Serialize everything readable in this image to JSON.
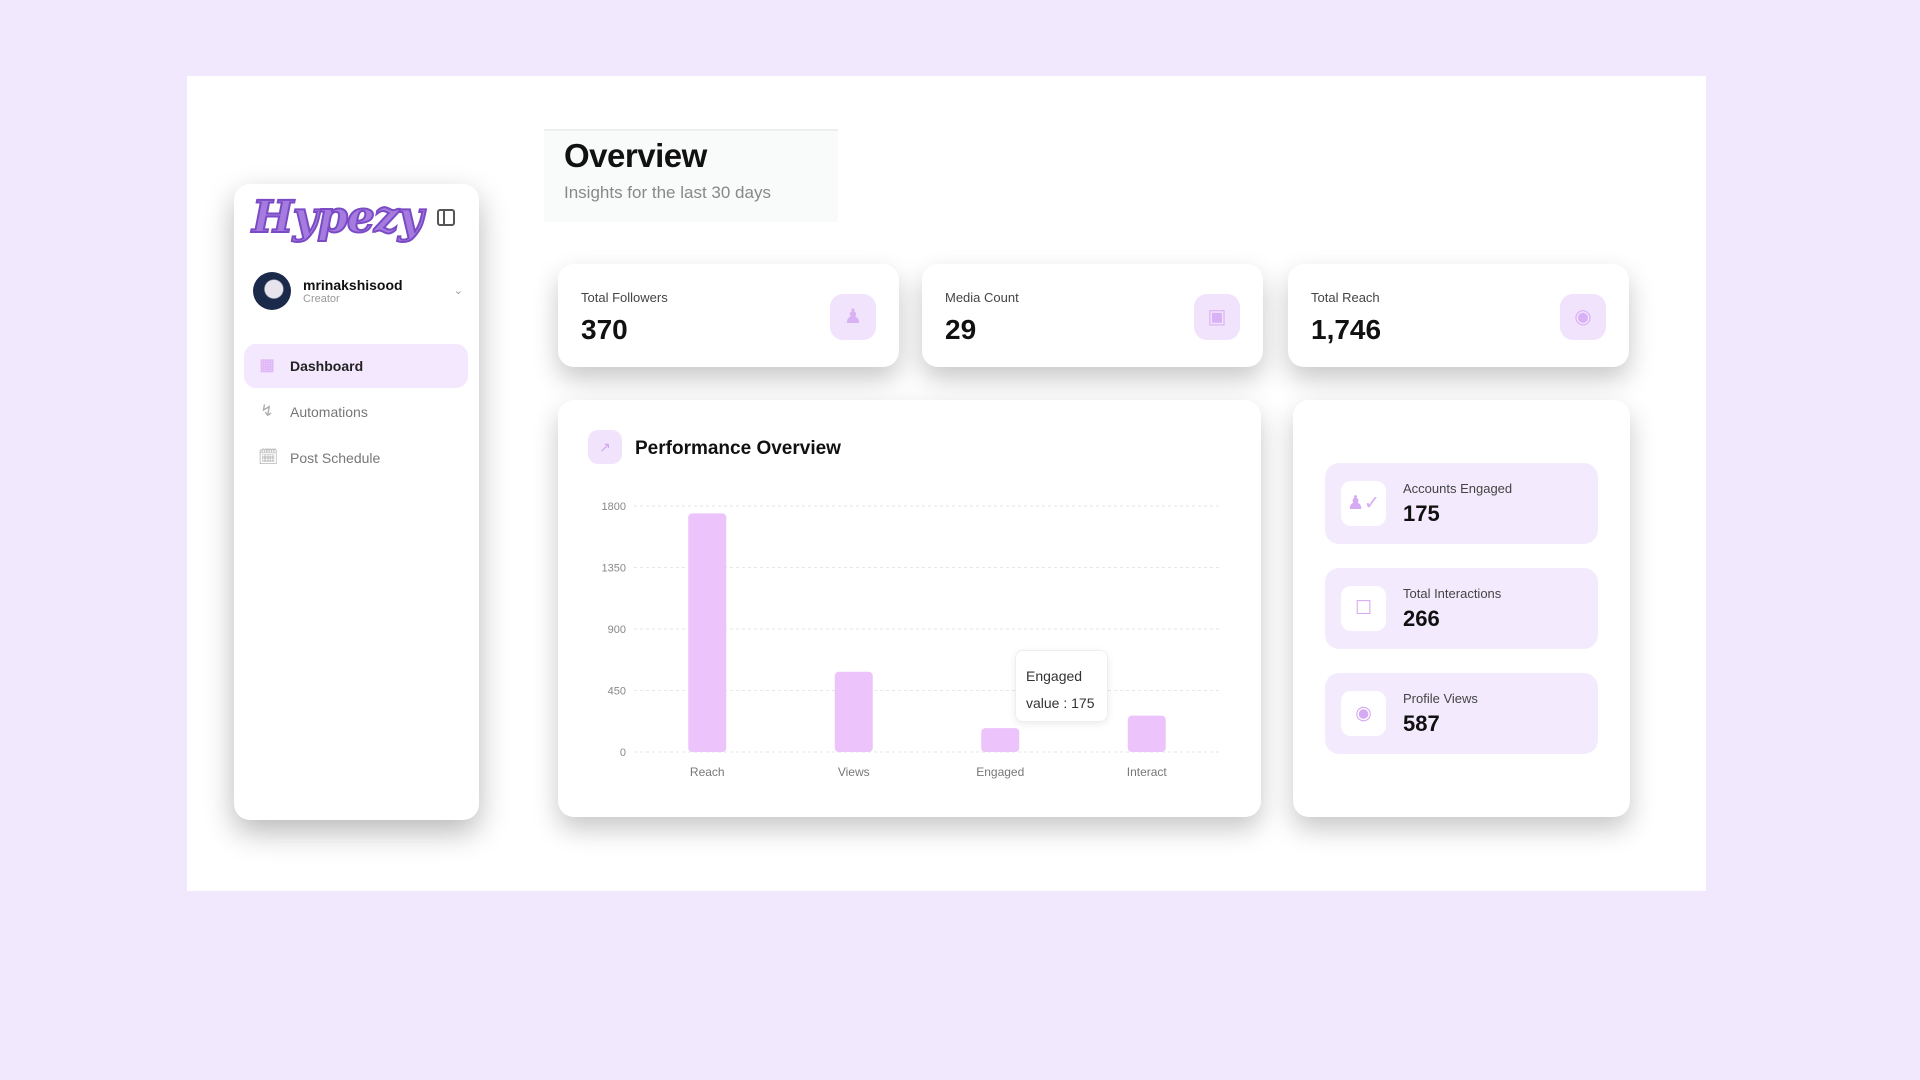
{
  "brand": {
    "logo": "Hypezy"
  },
  "user": {
    "name": "mrinakshisood",
    "role": "Creator"
  },
  "sidebar": {
    "items": [
      {
        "label": "Dashboard",
        "icon": "grid-icon",
        "active": true
      },
      {
        "label": "Automations",
        "icon": "lightning-icon"
      },
      {
        "label": "Post Schedule",
        "icon": "calendar-icon"
      }
    ]
  },
  "header": {
    "title": "Overview",
    "subtitle": "Insights for the last 30 days"
  },
  "stats": [
    {
      "label": "Total Followers",
      "value": "370",
      "icon": "users-icon"
    },
    {
      "label": "Media Count",
      "value": "29",
      "icon": "image-icon"
    },
    {
      "label": "Total Reach",
      "value": "1,746",
      "icon": "eye-icon"
    }
  ],
  "performance": {
    "title": "Performance Overview",
    "tooltip": {
      "label": "Engaged",
      "value": "value : 175"
    }
  },
  "side_metrics": [
    {
      "label": "Accounts Engaged",
      "value": "175",
      "icon": "user-check-icon"
    },
    {
      "label": "Total Interactions",
      "value": "266",
      "icon": "message-icon"
    },
    {
      "label": "Profile Views",
      "value": "587",
      "icon": "eye-icon"
    }
  ],
  "chart_data": {
    "type": "bar",
    "categories": [
      "Reach",
      "Views",
      "Engaged",
      "Interact"
    ],
    "values": [
      1746,
      587,
      175,
      266
    ],
    "yticks": [
      "0",
      "450",
      "900",
      "1350",
      "1800"
    ],
    "ylim": [
      0,
      1800
    ],
    "grid": true,
    "bar_color": "#ecc4fb"
  }
}
